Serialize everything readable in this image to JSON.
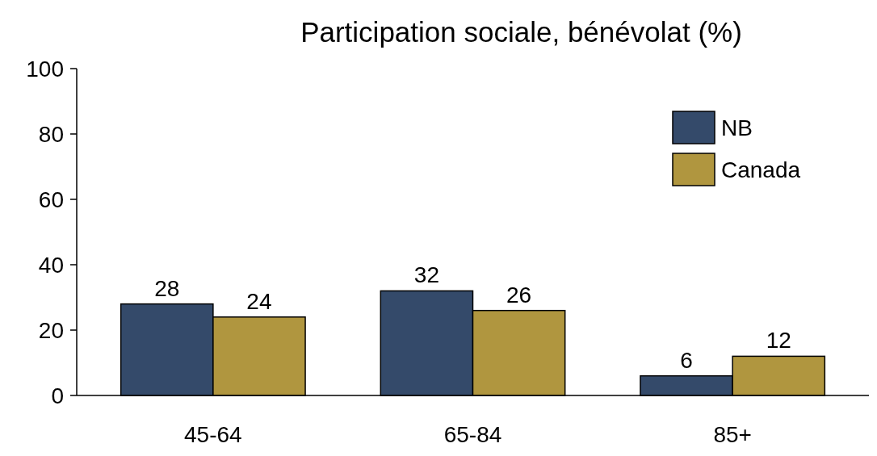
{
  "chart_data": {
    "type": "bar",
    "title": "Participation sociale, bénévolat (%)",
    "categories": [
      "45-64",
      "65-84",
      "85+"
    ],
    "series": [
      {
        "name": "NB",
        "color": "#344a6a",
        "values": [
          28,
          32,
          6
        ]
      },
      {
        "name": "Canada",
        "color": "#b0963f",
        "values": [
          24,
          26,
          12
        ]
      }
    ],
    "ylim": [
      0,
      100
    ],
    "yticks": [
      0,
      20,
      40,
      60,
      80,
      100
    ],
    "grid": false,
    "legend": "top right",
    "data_labels": true
  }
}
